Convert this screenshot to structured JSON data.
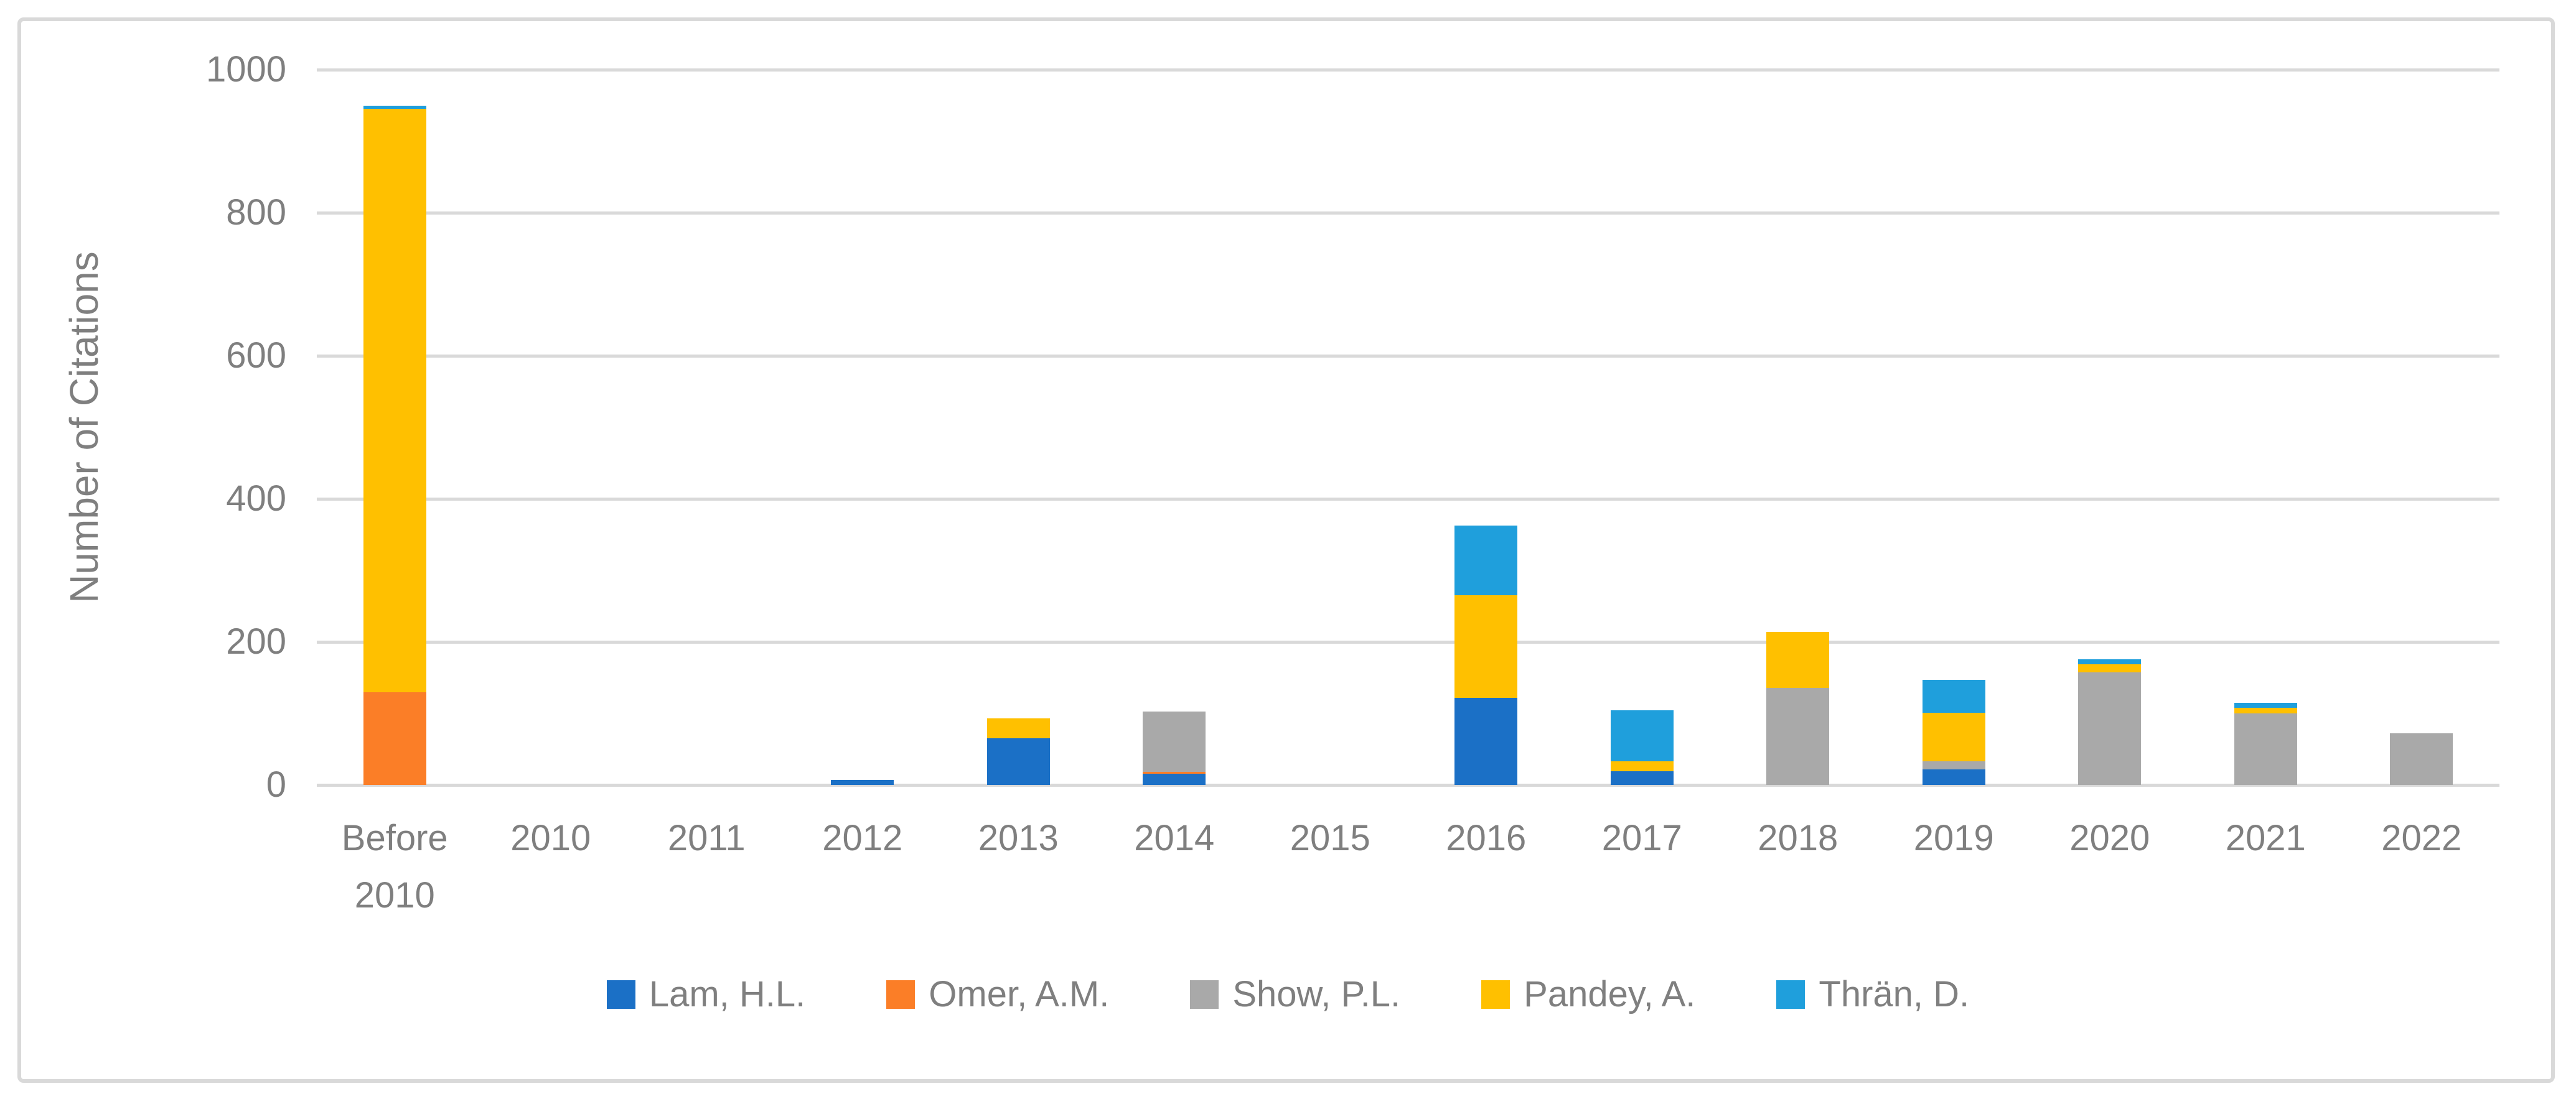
{
  "figure": {
    "background_color": "#FFFFFF",
    "border_color": "#D9D9D9",
    "text_color": "#7F7F7F",
    "gridline_color": "#D9D9D9"
  },
  "chart_data": {
    "type": "bar",
    "stacked": true,
    "title": "",
    "xlabel": "",
    "ylabel": "Number of Citations",
    "ylim": [
      0,
      1000
    ],
    "yticks": [
      0,
      200,
      400,
      600,
      800,
      1000
    ],
    "grid": true,
    "legend_position": "bottom",
    "categories": [
      "Before\n2010",
      "2010",
      "2011",
      "2012",
      "2013",
      "2014",
      "2015",
      "2016",
      "2017",
      "2018",
      "2019",
      "2020",
      "2021",
      "2022"
    ],
    "series": [
      {
        "name": "Lam, H.L.",
        "color": "#1B70C6",
        "values": [
          0,
          0,
          0,
          7,
          65,
          16,
          0,
          122,
          19,
          0,
          22,
          0,
          0,
          0
        ]
      },
      {
        "name": "Omer, A.M.",
        "color": "#FB7E27",
        "values": [
          130,
          0,
          0,
          0,
          0,
          2,
          0,
          0,
          0,
          0,
          0,
          0,
          0,
          0
        ]
      },
      {
        "name": "Show, P.L.",
        "color": "#A9A9A9",
        "values": [
          0,
          0,
          0,
          0,
          0,
          85,
          0,
          0,
          0,
          136,
          11,
          157,
          100,
          72
        ]
      },
      {
        "name": "Pandey, A.",
        "color": "#FFC000",
        "values": [
          815,
          0,
          0,
          0,
          28,
          0,
          0,
          143,
          14,
          78,
          68,
          12,
          8,
          0
        ]
      },
      {
        "name": "Thrän, D.",
        "color": "#1F9FDC",
        "values": [
          5,
          0,
          0,
          0,
          0,
          0,
          0,
          98,
          71,
          0,
          46,
          7,
          7,
          0
        ]
      }
    ]
  }
}
